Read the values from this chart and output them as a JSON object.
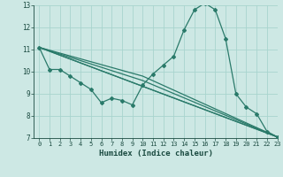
{
  "xlabel": "Humidex (Indice chaleur)",
  "background_color": "#cde8e4",
  "grid_color": "#a8d4ce",
  "line_color": "#2a7a6a",
  "xmin": -0.5,
  "xmax": 23,
  "ymin": 7,
  "ymax": 13,
  "yticks": [
    7,
    8,
    9,
    10,
    11,
    12,
    13
  ],
  "xticks": [
    0,
    1,
    2,
    3,
    4,
    5,
    6,
    7,
    8,
    9,
    10,
    11,
    12,
    13,
    14,
    15,
    16,
    17,
    18,
    19,
    20,
    21,
    22,
    23
  ],
  "main_series": {
    "x": [
      0,
      1,
      2,
      3,
      4,
      5,
      6,
      7,
      8,
      9,
      10,
      11,
      12,
      13,
      14,
      15,
      16,
      17,
      18,
      19,
      20,
      21,
      22,
      23
    ],
    "y": [
      11.1,
      10.1,
      10.1,
      9.8,
      9.5,
      9.2,
      8.6,
      8.8,
      8.7,
      8.5,
      9.4,
      9.9,
      10.3,
      10.7,
      11.9,
      12.8,
      13.1,
      12.8,
      11.5,
      9.0,
      8.4,
      8.1,
      7.3,
      7.05
    ]
  },
  "line1": {
    "x": [
      0,
      23
    ],
    "y": [
      11.1,
      7.05
    ]
  },
  "line2": {
    "x": [
      0,
      23
    ],
    "y": [
      11.1,
      7.05
    ]
  },
  "line3": {
    "x": [
      0,
      10,
      23
    ],
    "y": [
      11.1,
      9.6,
      7.05
    ]
  },
  "line4": {
    "x": [
      0,
      10,
      23
    ],
    "y": [
      11.1,
      9.8,
      7.05
    ]
  }
}
